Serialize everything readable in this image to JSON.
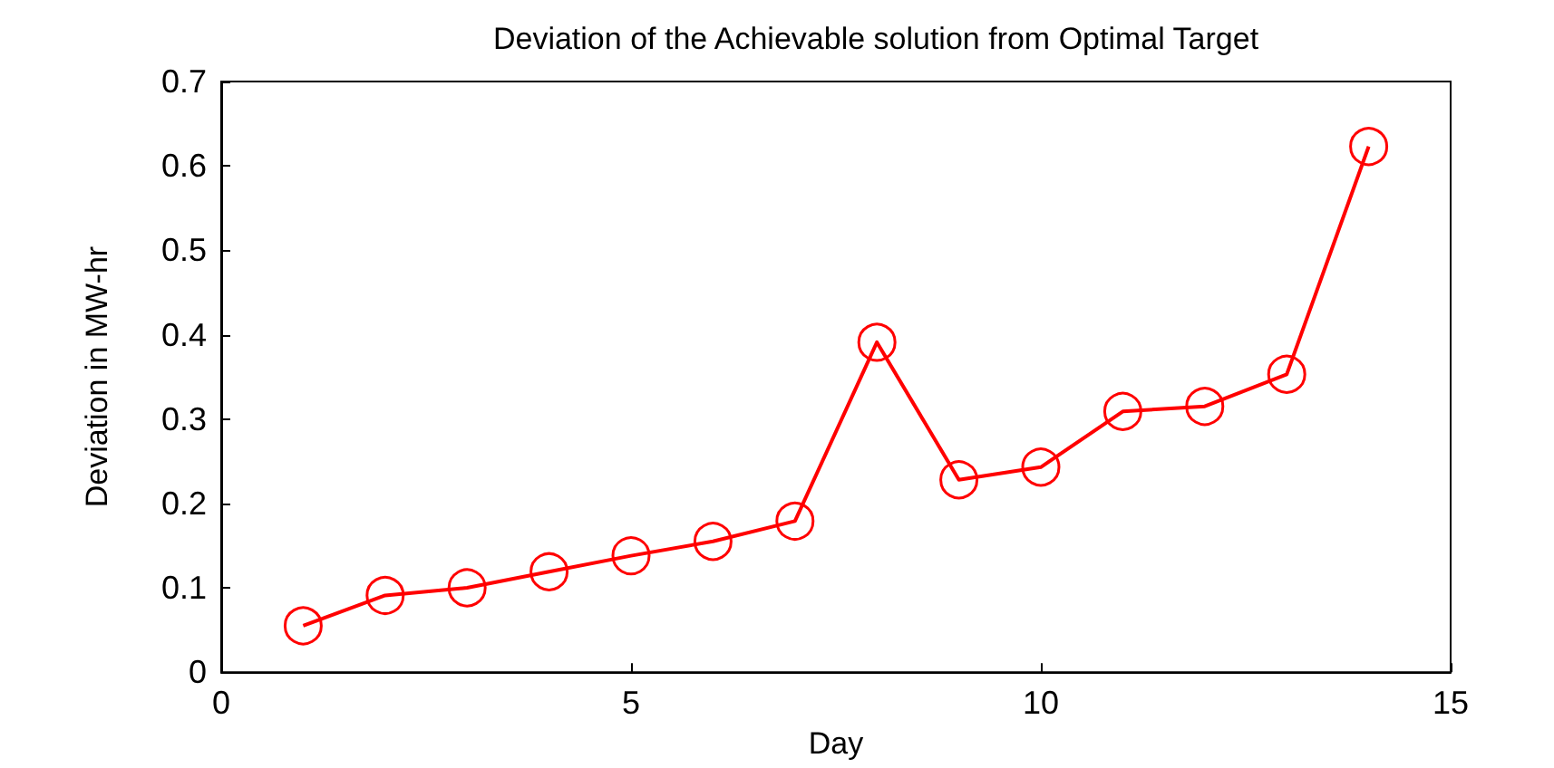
{
  "chart_data": {
    "type": "line",
    "title": "Deviation of the Achievable solution from Optimal Target",
    "xlabel": "Day",
    "ylabel": "Deviation in MW-hr",
    "x": [
      1,
      2,
      3,
      4,
      5,
      6,
      7,
      8,
      9,
      10,
      11,
      12,
      13,
      14
    ],
    "series": [
      {
        "color": "#ff0000",
        "values": [
          0.055,
          0.091,
          0.1,
          0.119,
          0.138,
          0.155,
          0.179,
          0.391,
          0.228,
          0.243,
          0.309,
          0.315,
          0.353,
          0.623
        ]
      }
    ],
    "xlim": [
      0,
      15
    ],
    "xticks": [
      0,
      5,
      10,
      15
    ],
    "ylim": [
      0,
      0.7
    ],
    "yticks": [
      0,
      0.1,
      0.2,
      0.3,
      0.4,
      0.5,
      0.6,
      0.7
    ],
    "grid": false,
    "marker": "circle",
    "line_style": "solid"
  }
}
